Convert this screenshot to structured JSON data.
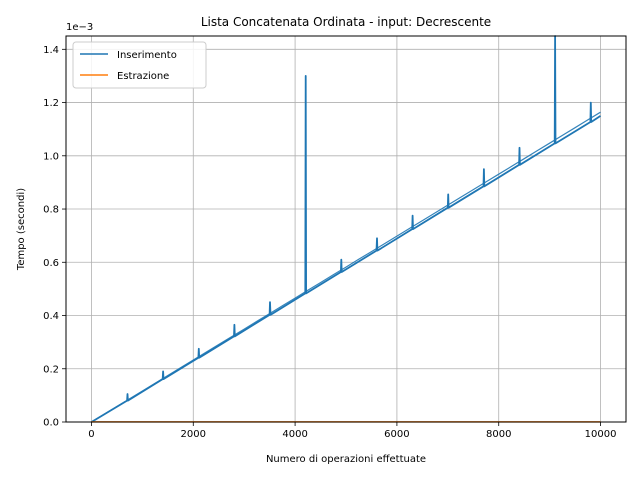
{
  "chart_data": {
    "type": "line",
    "title": "Lista Concatenata Ordinata - input: Decrescente",
    "xlabel": "Numero di operazioni effettuate",
    "ylabel": "Tempo (secondi)",
    "y_offset_text": "1e−3",
    "y_scale": 0.001,
    "xlim": [
      -500,
      10500
    ],
    "ylim": [
      0,
      0.00145
    ],
    "x_ticks": [
      0,
      2000,
      4000,
      6000,
      8000,
      10000
    ],
    "y_ticks": [
      0.0,
      0.2,
      0.4,
      0.6,
      0.8,
      1.0,
      1.2,
      1.4
    ],
    "x_tick_labels": [
      "0",
      "2000",
      "4000",
      "6000",
      "8000",
      "10000"
    ],
    "y_tick_labels": [
      "0.0",
      "0.2",
      "0.4",
      "0.6",
      "0.8",
      "1.0",
      "1.2",
      "1.4"
    ],
    "grid": true,
    "legend_position": "top-left",
    "series": [
      {
        "name": "Inserimento",
        "color": "#1f77b4",
        "trend": {
          "x": [
            0,
            10000
          ],
          "y": [
            0.0,
            0.00115
          ]
        },
        "spikes": [
          {
            "x": 700,
            "y": 0.000105
          },
          {
            "x": 1400,
            "y": 0.00019
          },
          {
            "x": 2100,
            "y": 0.000275
          },
          {
            "x": 2800,
            "y": 0.000365
          },
          {
            "x": 3500,
            "y": 0.00045
          },
          {
            "x": 4200,
            "y": 0.0013
          },
          {
            "x": 4900,
            "y": 0.00061
          },
          {
            "x": 5600,
            "y": 0.00069
          },
          {
            "x": 6300,
            "y": 0.000775
          },
          {
            "x": 7000,
            "y": 0.000855
          },
          {
            "x": 7700,
            "y": 0.00095
          },
          {
            "x": 8400,
            "y": 0.00103
          },
          {
            "x": 9100,
            "y": 0.00145
          },
          {
            "x": 9800,
            "y": 0.0012
          }
        ]
      },
      {
        "name": "Estrazione",
        "color": "#ff7f0e",
        "trend": {
          "x": [
            0,
            10000
          ],
          "y": [
            5e-07,
            5e-07
          ]
        },
        "spikes": []
      }
    ]
  }
}
